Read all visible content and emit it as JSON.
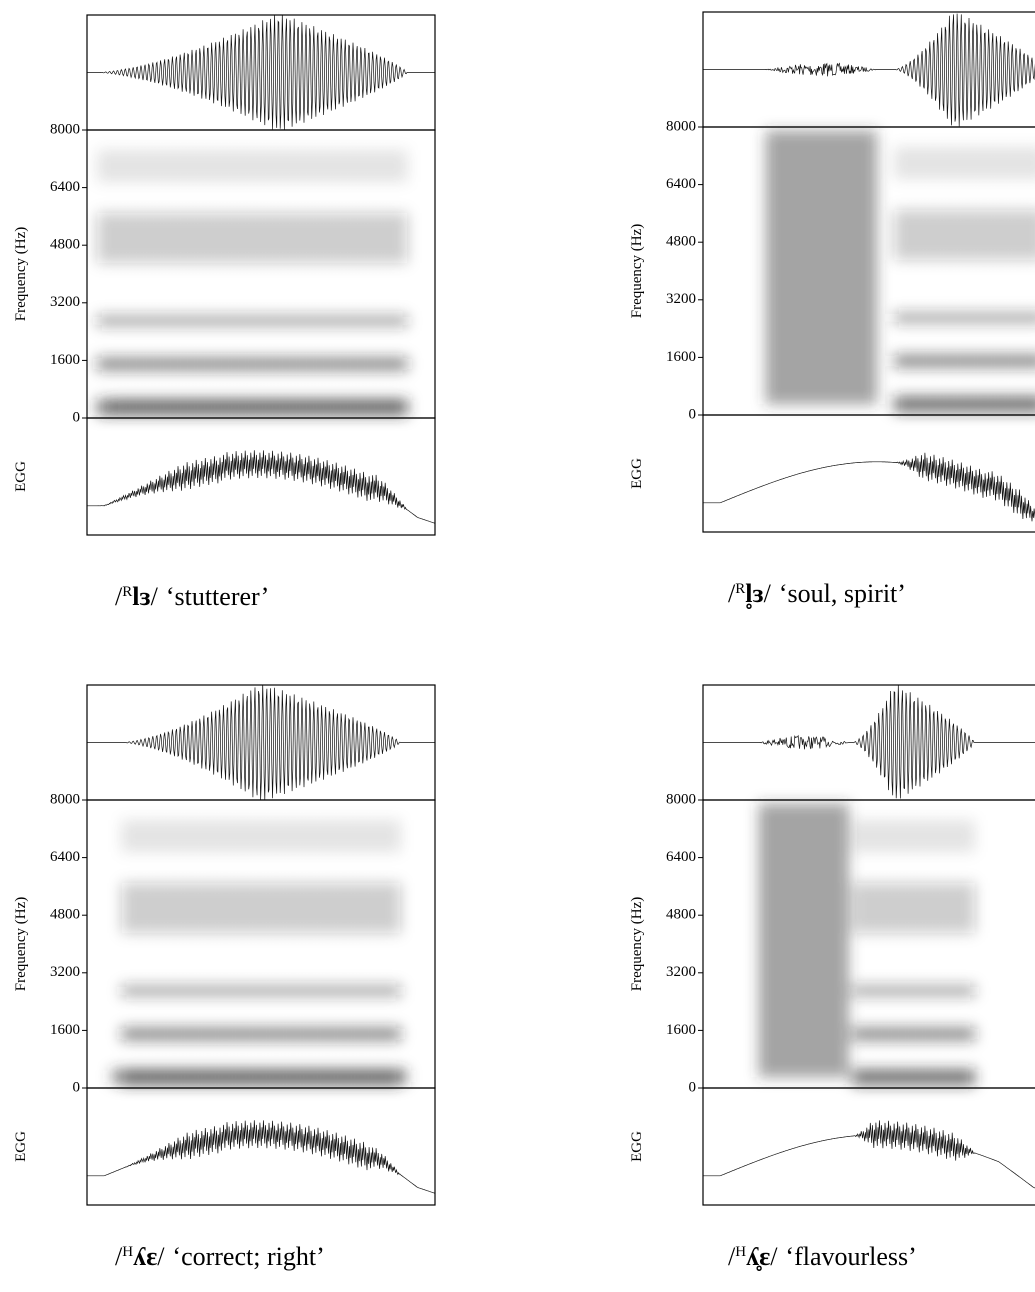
{
  "panels": [
    {
      "ylabel": "Frequency (Hz)",
      "egg_label": "EGG",
      "ylim": [
        0,
        8000
      ],
      "yticks": [
        0,
        1600,
        3200,
        4800,
        6400,
        8000
      ],
      "caption": {
        "open": "/",
        "tone": "R",
        "word": "lɜ",
        "close": "/",
        "gloss": "‘stutterer’"
      }
    },
    {
      "ylabel": "Frequency (Hz)",
      "egg_label": "EGG",
      "ylim": [
        0,
        8000
      ],
      "yticks": [
        0,
        1600,
        3200,
        4800,
        6400,
        8000
      ],
      "caption": {
        "open": "/",
        "tone": "R",
        "word": "l̥ɜ",
        "close": "/",
        "gloss": "‘soul, spirit’"
      }
    },
    {
      "ylabel": "Frequency (Hz)",
      "egg_label": "EGG",
      "ylim": [
        0,
        8000
      ],
      "yticks": [
        0,
        1600,
        3200,
        4800,
        6400,
        8000
      ],
      "caption": {
        "open": "/",
        "tone": "H",
        "word": "ʎɛ",
        "close": "/",
        "gloss": "‘correct; right’"
      }
    },
    {
      "ylabel": "Frequency (Hz)",
      "egg_label": "EGG",
      "ylim": [
        0,
        8000
      ],
      "yticks": [
        0,
        1600,
        3200,
        4800,
        6400,
        8000
      ],
      "caption": {
        "open": "/",
        "tone": "H",
        "word": "ʎ̥ɛ",
        "close": "/",
        "gloss": "‘flavourless’"
      }
    }
  ]
}
